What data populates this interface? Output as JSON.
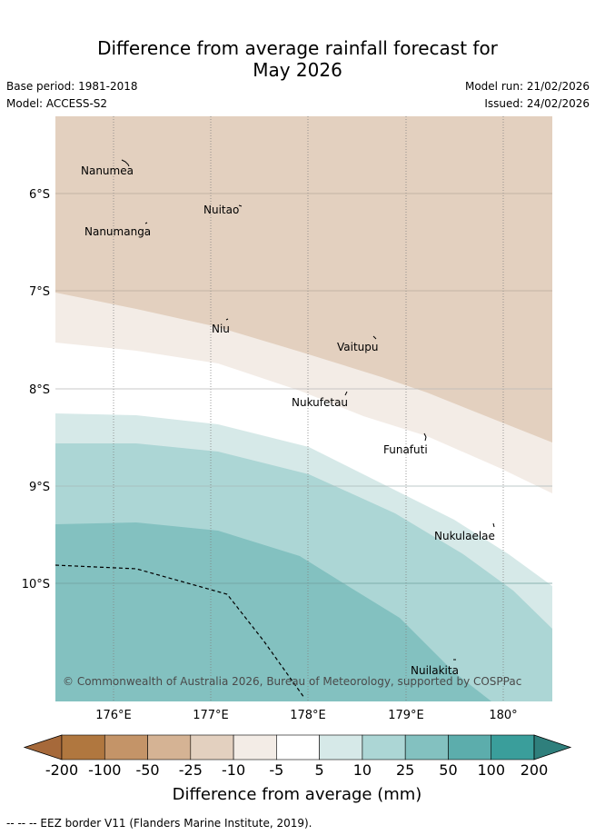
{
  "title": {
    "line1": "Difference from average rainfall forecast for",
    "line2": "May 2026"
  },
  "meta": {
    "base_period": "Base period: 1981-2018",
    "model": "Model: ACCESS-S2",
    "model_run": "Model run: 21/02/2026",
    "issued": "Issued: 24/02/2026"
  },
  "map": {
    "lon_labels": [
      "176°E",
      "177°E",
      "178°E",
      "179°E",
      "180°"
    ],
    "lat_labels": [
      "6°S",
      "7°S",
      "8°S",
      "9°S",
      "10°S"
    ],
    "places": [
      {
        "name": "Nanumea"
      },
      {
        "name": "Nuitao"
      },
      {
        "name": "Nanumanga"
      },
      {
        "name": "Niu"
      },
      {
        "name": "Vaitupu"
      },
      {
        "name": "Nukufetau"
      },
      {
        "name": "Funafuti"
      },
      {
        "name": "Nukulaelae"
      },
      {
        "name": "Nuilakita"
      }
    ],
    "copyright": "© Commonwealth of Australia 2026, Bureau of Meteorology, supported by COSPPac",
    "eez_legend": "-- -- -- EEZ border V11 (Flanders Marine Institute, 2019)."
  },
  "colorbar": {
    "title": "Difference from average (mm)",
    "ticks": [
      "-200",
      "-100",
      "-50",
      "-25",
      "-10",
      "-5",
      "5",
      "10",
      "25",
      "50",
      "100",
      "200"
    ],
    "colors": {
      "below_min": "#a6693a",
      "bins": [
        "#b0773f",
        "#c49468",
        "#d5b394",
        "#e3d0bf",
        "#f3ece6",
        "#ffffff",
        "#d6e9e8",
        "#acd6d5",
        "#83c1c0",
        "#5cadac",
        "#3a9e9b"
      ],
      "above_max": "#2f7f7c"
    }
  }
}
